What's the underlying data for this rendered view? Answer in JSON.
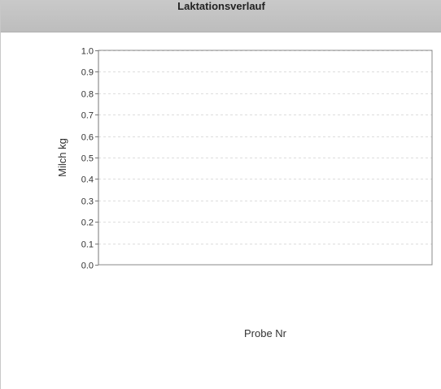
{
  "window": {
    "title": "Laktationsverlauf"
  },
  "chart_data": {
    "type": "line",
    "title": "",
    "xlabel": "Probe Nr",
    "ylabel": "Milch kg",
    "ylim": [
      0,
      1.0
    ],
    "yticks": [
      "0.0",
      "0.1",
      "0.2",
      "0.3",
      "0.4",
      "0.5",
      "0.6",
      "0.7",
      "0.8",
      "0.9",
      "1.0"
    ],
    "x": [],
    "series": [],
    "grid": true,
    "colors": {
      "grid": "#dddddd",
      "axis": "#777777",
      "frame": "#888888"
    }
  }
}
